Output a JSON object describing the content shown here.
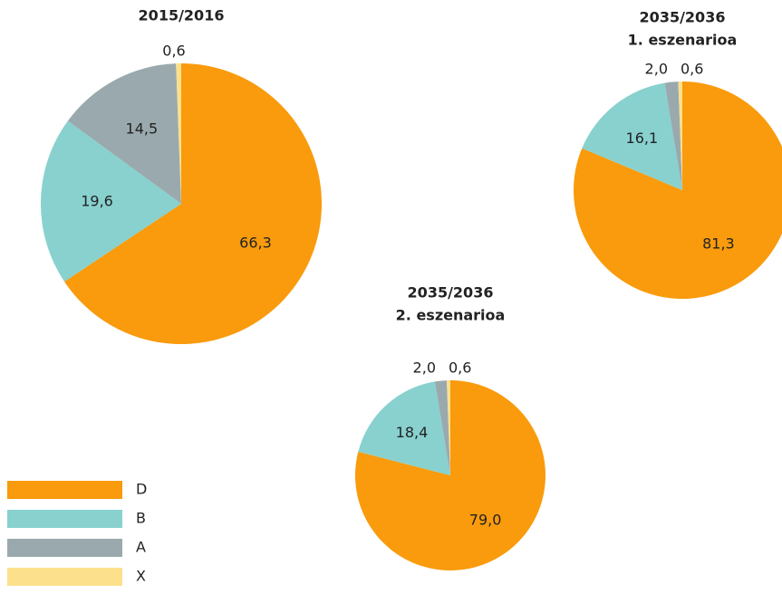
{
  "chart_data": [
    {
      "type": "pie",
      "title": "2015/2016",
      "categories": [
        "D",
        "B",
        "A",
        "X"
      ],
      "values": [
        66.3,
        19.6,
        14.5,
        0.6
      ],
      "value_labels": [
        "66,3",
        "19,6",
        "14,5",
        "0,6"
      ],
      "colors": [
        "#f99b0c",
        "#88d1cf",
        "#9aa9ad",
        "#fde08c"
      ]
    },
    {
      "type": "pie",
      "title": "2035/2036",
      "subtitle": "1. eszenarioa",
      "categories": [
        "D",
        "B",
        "A",
        "X"
      ],
      "values": [
        81.3,
        16.1,
        2.0,
        0.6
      ],
      "value_labels": [
        "81,3",
        "16,1",
        "2,0",
        "0,6"
      ],
      "colors": [
        "#f99b0c",
        "#88d1cf",
        "#9aa9ad",
        "#fde08c"
      ]
    },
    {
      "type": "pie",
      "title": "2035/2036",
      "subtitle": "2. eszenarioa",
      "categories": [
        "D",
        "B",
        "A",
        "X"
      ],
      "values": [
        79.0,
        18.4,
        2.0,
        0.6
      ],
      "value_labels": [
        "79,0",
        "18,4",
        "2,0",
        "0,6"
      ],
      "colors": [
        "#f99b0c",
        "#88d1cf",
        "#9aa9ad",
        "#fde08c"
      ]
    }
  ]
}
